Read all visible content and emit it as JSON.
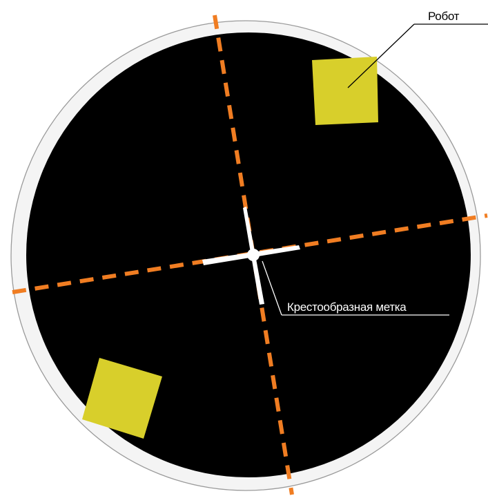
{
  "labels": {
    "robot": "Робот",
    "cross_mark": "Крестообразная метка"
  },
  "colors": {
    "arena_fill": "#000000",
    "arena_border": "#f4f4f4",
    "arena_outline": "#9a9a9a",
    "axis_dashes": "#f07d22",
    "robot_fill": "#d8cf2b",
    "cross_mark": "#ffffff",
    "leader_robot": "#000000",
    "leader_cross": "#ffffff"
  }
}
